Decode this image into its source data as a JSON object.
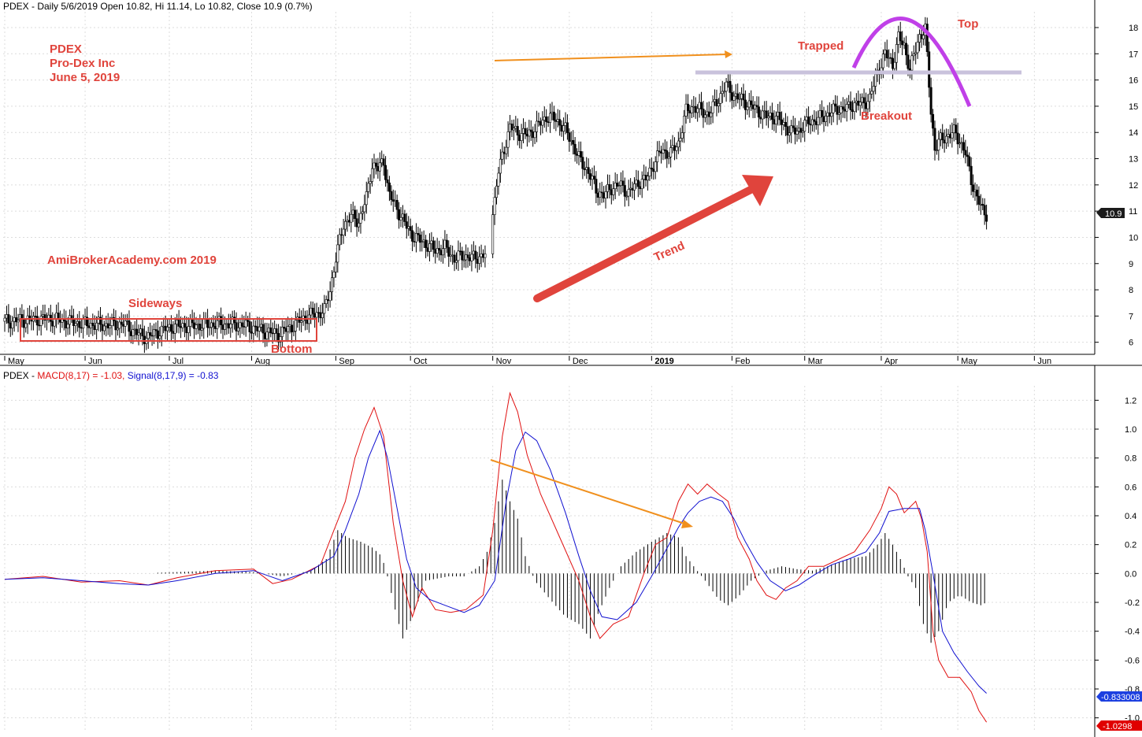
{
  "header": {
    "price_text": "PDEX - Daily 5/6/2019 Open 10.82, Hi 11.14, Lo 10.82, Close 10.9 (0.7%)",
    "macd_prefix": "PDEX - ",
    "macd_label": "MACD(8,17) = -1.03,",
    "signal_label": "Signal(8,17,9) = -0.83"
  },
  "annotations": {
    "symbol": "PDEX",
    "company": "Pro-Dex Inc",
    "date": "June 5, 2019",
    "watermark": "AmiBrokerAcademy.com  2019",
    "sideways": "Sideways",
    "bottom": "Bottom",
    "trend": "Trend",
    "trapped": "Trapped",
    "breakout": "Breakout",
    "top": "Top"
  },
  "colors": {
    "annotation": "#e0443c",
    "macd": "#e01010",
    "signal": "#1010d0",
    "histogram": "#000000",
    "orange": "#f0901e",
    "purple": "#c040e8",
    "resistance": "#c9c2dc",
    "trend_arrow": "#e0443c"
  },
  "price_badge": "10.9",
  "macd_badge": "-1.0298",
  "signal_badge": "-0.833008",
  "chart_data": [
    {
      "type": "candlestick",
      "title": "PDEX - Daily",
      "ylim": [
        5.6,
        18.6
      ],
      "y_ticks": [
        6,
        7,
        8,
        9,
        10,
        11,
        12,
        13,
        14,
        15,
        16,
        17,
        18
      ],
      "month_labels": [
        "May",
        "Jun",
        "Jul",
        "Aug",
        "Sep",
        "Oct",
        "Nov",
        "Dec",
        "2019",
        "Feb",
        "Mar",
        "Apr",
        "May",
        "Jun"
      ],
      "grid": true,
      "close_path": [
        [
          0,
          6.8
        ],
        [
          12,
          6.85
        ],
        [
          25,
          6.9
        ],
        [
          35,
          6.75
        ],
        [
          50,
          6.65
        ],
        [
          62,
          6.7
        ],
        [
          70,
          6.3
        ],
        [
          75,
          6.2
        ],
        [
          80,
          6.4
        ],
        [
          88,
          6.6
        ],
        [
          100,
          6.65
        ],
        [
          112,
          6.7
        ],
        [
          125,
          6.65
        ],
        [
          137,
          6.4
        ],
        [
          143,
          6.3
        ],
        [
          150,
          6.6
        ],
        [
          157,
          6.95
        ],
        [
          163,
          7.1
        ],
        [
          167,
          7.2
        ],
        [
          170,
          8.0
        ],
        [
          173,
          9.2
        ],
        [
          177,
          10.5
        ],
        [
          181,
          10.8
        ],
        [
          185,
          10.6
        ],
        [
          189,
          11.5
        ],
        [
          192,
          12.8
        ],
        [
          195,
          12.6
        ],
        [
          198,
          12.9
        ],
        [
          201,
          11.6
        ],
        [
          205,
          11.1
        ],
        [
          210,
          10.4
        ],
        [
          214,
          10.0
        ],
        [
          219,
          9.8
        ],
        [
          225,
          9.5
        ],
        [
          230,
          9.6
        ],
        [
          235,
          9.2
        ],
        [
          240,
          9.3
        ],
        [
          245,
          9.2
        ],
        [
          251,
          9.35
        ],
        [
          256,
          11.4
        ],
        [
          258,
          12.5
        ],
        [
          261,
          13.4
        ],
        [
          264,
          14.2
        ],
        [
          268,
          14.0
        ],
        [
          273,
          13.9
        ],
        [
          278,
          14.2
        ],
        [
          283,
          14.6
        ],
        [
          288,
          14.5
        ],
        [
          292,
          14.2
        ],
        [
          296,
          13.7
        ],
        [
          300,
          13.0
        ],
        [
          305,
          12.5
        ],
        [
          309,
          11.8
        ],
        [
          313,
          11.6
        ],
        [
          317,
          11.9
        ],
        [
          321,
          12.0
        ],
        [
          326,
          11.7
        ],
        [
          331,
          12.1
        ],
        [
          335,
          12.2
        ],
        [
          339,
          12.8
        ],
        [
          343,
          13.3
        ],
        [
          348,
          13.2
        ],
        [
          352,
          13.6
        ],
        [
          356,
          14.8
        ],
        [
          360,
          15.0
        ],
        [
          364,
          14.8
        ],
        [
          368,
          14.7
        ],
        [
          373,
          15.3
        ],
        [
          377,
          15.8
        ],
        [
          381,
          15.4
        ],
        [
          386,
          15.2
        ],
        [
          390,
          15.0
        ],
        [
          394,
          14.8
        ],
        [
          398,
          14.6
        ],
        [
          403,
          14.6
        ],
        [
          407,
          14.3
        ],
        [
          411,
          14.0
        ],
        [
          415,
          14.1
        ],
        [
          420,
          14.4
        ],
        [
          425,
          14.5
        ],
        [
          430,
          14.7
        ],
        [
          435,
          14.9
        ],
        [
          440,
          14.9
        ],
        [
          444,
          15.1
        ],
        [
          448,
          15.1
        ],
        [
          452,
          15.3
        ],
        [
          456,
          16.3
        ],
        [
          460,
          17.0
        ],
        [
          464,
          16.6
        ],
        [
          467,
          17.6
        ],
        [
          470,
          17.3
        ],
        [
          473,
          16.4
        ],
        [
          475,
          16.9
        ],
        [
          478,
          17.7
        ],
        [
          481,
          17.9
        ],
        [
          484,
          14.8
        ],
        [
          486,
          13.4
        ],
        [
          489,
          13.7
        ],
        [
          493,
          13.9
        ],
        [
          496,
          14.0
        ],
        [
          499,
          13.7
        ],
        [
          502,
          13.2
        ],
        [
          505,
          12.2
        ],
        [
          508,
          11.5
        ],
        [
          511,
          11.0
        ],
        [
          513,
          10.9
        ]
      ]
    },
    {
      "type": "line",
      "title": "MACD(8,17)",
      "ylim": [
        -1.1,
        1.3
      ],
      "y_ticks": [
        1.2,
        1.0,
        0.8,
        0.6,
        0.4,
        0.2,
        0.0,
        -0.2,
        -0.4,
        -0.6,
        -0.8,
        -1.0
      ],
      "series": [
        {
          "name": "MACD(8,17)",
          "points": [
            [
              0,
              -0.04
            ],
            [
              20,
              -0.02
            ],
            [
              40,
              -0.06
            ],
            [
              60,
              -0.05
            ],
            [
              75,
              -0.08
            ],
            [
              90,
              -0.03
            ],
            [
              110,
              0.02
            ],
            [
              130,
              0.03
            ],
            [
              140,
              -0.07
            ],
            [
              150,
              -0.04
            ],
            [
              165,
              0.06
            ],
            [
              172,
              0.3
            ],
            [
              178,
              0.5
            ],
            [
              183,
              0.8
            ],
            [
              188,
              1.0
            ],
            [
              193,
              1.15
            ],
            [
              198,
              0.95
            ],
            [
              203,
              0.35
            ],
            [
              208,
              -0.05
            ],
            [
              213,
              -0.3
            ],
            [
              218,
              -0.1
            ],
            [
              225,
              -0.25
            ],
            [
              233,
              -0.27
            ],
            [
              241,
              -0.25
            ],
            [
              250,
              -0.15
            ],
            [
              255,
              0.3
            ],
            [
              260,
              0.95
            ],
            [
              264,
              1.25
            ],
            [
              268,
              1.12
            ],
            [
              273,
              0.82
            ],
            [
              280,
              0.55
            ],
            [
              290,
              0.25
            ],
            [
              300,
              -0.05
            ],
            [
              306,
              -0.3
            ],
            [
              311,
              -0.45
            ],
            [
              318,
              -0.35
            ],
            [
              326,
              -0.3
            ],
            [
              334,
              0.0
            ],
            [
              340,
              0.2
            ],
            [
              346,
              0.25
            ],
            [
              352,
              0.5
            ],
            [
              357,
              0.62
            ],
            [
              362,
              0.55
            ],
            [
              367,
              0.62
            ],
            [
              373,
              0.55
            ],
            [
              378,
              0.5
            ],
            [
              383,
              0.25
            ],
            [
              389,
              0.1
            ],
            [
              393,
              -0.05
            ],
            [
              398,
              -0.15
            ],
            [
              403,
              -0.18
            ],
            [
              408,
              -0.1
            ],
            [
              414,
              -0.05
            ],
            [
              420,
              0.05
            ],
            [
              428,
              0.05
            ],
            [
              436,
              0.1
            ],
            [
              444,
              0.15
            ],
            [
              452,
              0.3
            ],
            [
              458,
              0.45
            ],
            [
              462,
              0.6
            ],
            [
              466,
              0.55
            ],
            [
              470,
              0.42
            ],
            [
              476,
              0.5
            ],
            [
              479,
              0.38
            ],
            [
              482,
              0.15
            ],
            [
              485,
              -0.4
            ],
            [
              488,
              -0.6
            ],
            [
              493,
              -0.72
            ],
            [
              499,
              -0.72
            ],
            [
              505,
              -0.82
            ],
            [
              509,
              -0.95
            ],
            [
              513,
              -1.03
            ]
          ]
        },
        {
          "name": "Signal(8,17,9)",
          "points": [
            [
              0,
              -0.04
            ],
            [
              20,
              -0.03
            ],
            [
              40,
              -0.05
            ],
            [
              60,
              -0.07
            ],
            [
              75,
              -0.08
            ],
            [
              90,
              -0.05
            ],
            [
              110,
              0.0
            ],
            [
              130,
              0.02
            ],
            [
              145,
              -0.05
            ],
            [
              160,
              0.02
            ],
            [
              172,
              0.12
            ],
            [
              178,
              0.3
            ],
            [
              185,
              0.55
            ],
            [
              190,
              0.8
            ],
            [
              196,
              0.99
            ],
            [
              200,
              0.8
            ],
            [
              205,
              0.45
            ],
            [
              210,
              0.1
            ],
            [
              215,
              -0.1
            ],
            [
              222,
              -0.18
            ],
            [
              230,
              -0.22
            ],
            [
              240,
              -0.27
            ],
            [
              248,
              -0.22
            ],
            [
              256,
              -0.05
            ],
            [
              262,
              0.5
            ],
            [
              267,
              0.85
            ],
            [
              272,
              0.98
            ],
            [
              278,
              0.92
            ],
            [
              285,
              0.72
            ],
            [
              293,
              0.42
            ],
            [
              300,
              0.12
            ],
            [
              306,
              -0.12
            ],
            [
              312,
              -0.3
            ],
            [
              320,
              -0.32
            ],
            [
              330,
              -0.2
            ],
            [
              338,
              -0.02
            ],
            [
              345,
              0.15
            ],
            [
              352,
              0.32
            ],
            [
              357,
              0.42
            ],
            [
              363,
              0.5
            ],
            [
              369,
              0.53
            ],
            [
              375,
              0.5
            ],
            [
              381,
              0.38
            ],
            [
              387,
              0.22
            ],
            [
              393,
              0.08
            ],
            [
              400,
              -0.05
            ],
            [
              408,
              -0.12
            ],
            [
              415,
              -0.08
            ],
            [
              423,
              -0.01
            ],
            [
              432,
              0.06
            ],
            [
              441,
              0.1
            ],
            [
              450,
              0.15
            ],
            [
              457,
              0.28
            ],
            [
              462,
              0.43
            ],
            [
              470,
              0.45
            ],
            [
              478,
              0.45
            ],
            [
              481,
              0.3
            ],
            [
              485,
              0.0
            ],
            [
              490,
              -0.4
            ],
            [
              496,
              -0.55
            ],
            [
              503,
              -0.68
            ],
            [
              509,
              -0.78
            ],
            [
              513,
              -0.83
            ]
          ]
        }
      ],
      "histogram_path": [
        [
          0,
          0.0
        ],
        [
          70,
          0.0
        ],
        [
          90,
          0.01
        ],
        [
          110,
          0.02
        ],
        [
          130,
          0.01
        ],
        [
          145,
          -0.02
        ],
        [
          160,
          0.02
        ],
        [
          168,
          0.1
        ],
        [
          174,
          0.3
        ],
        [
          179,
          0.25
        ],
        [
          186,
          0.22
        ],
        [
          192,
          0.18
        ],
        [
          197,
          0.12
        ],
        [
          200,
          -0.02
        ],
        [
          204,
          -0.25
        ],
        [
          208,
          -0.45
        ],
        [
          213,
          -0.3
        ],
        [
          220,
          -0.05
        ],
        [
          232,
          -0.02
        ],
        [
          240,
          -0.02
        ],
        [
          248,
          0.05
        ],
        [
          252,
          0.15
        ],
        [
          256,
          0.35
        ],
        [
          260,
          0.65
        ],
        [
          264,
          0.5
        ],
        [
          268,
          0.38
        ],
        [
          272,
          0.12
        ],
        [
          277,
          -0.05
        ],
        [
          285,
          -0.18
        ],
        [
          293,
          -0.3
        ],
        [
          300,
          -0.35
        ],
        [
          306,
          -0.45
        ],
        [
          310,
          -0.28
        ],
        [
          316,
          -0.1
        ],
        [
          322,
          0.05
        ],
        [
          330,
          0.15
        ],
        [
          338,
          0.22
        ],
        [
          346,
          0.28
        ],
        [
          352,
          0.25
        ],
        [
          356,
          0.12
        ],
        [
          360,
          0.05
        ],
        [
          366,
          -0.05
        ],
        [
          373,
          -0.18
        ],
        [
          378,
          -0.22
        ],
        [
          384,
          -0.15
        ],
        [
          390,
          -0.05
        ],
        [
          398,
          0.02
        ],
        [
          406,
          0.05
        ],
        [
          414,
          0.03
        ],
        [
          422,
          0.02
        ],
        [
          430,
          0.05
        ],
        [
          440,
          0.1
        ],
        [
          450,
          0.12
        ],
        [
          456,
          0.2
        ],
        [
          460,
          0.28
        ],
        [
          464,
          0.2
        ],
        [
          468,
          0.1
        ],
        [
          472,
          -0.02
        ],
        [
          476,
          -0.1
        ],
        [
          480,
          -0.35
        ],
        [
          484,
          -0.48
        ],
        [
          488,
          -0.4
        ],
        [
          493,
          -0.2
        ],
        [
          499,
          -0.15
        ],
        [
          505,
          -0.2
        ],
        [
          510,
          -0.22
        ],
        [
          513,
          -0.2
        ]
      ]
    }
  ]
}
